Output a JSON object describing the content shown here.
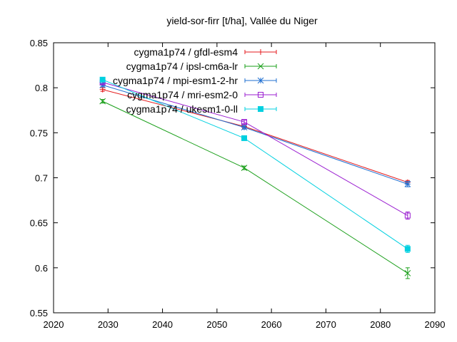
{
  "chart_data": {
    "type": "line",
    "title": "yield-sor-firr [t/ha], Vallée du Niger",
    "xlabel": "",
    "ylabel": "",
    "xlim": [
      2020,
      2090
    ],
    "ylim": [
      0.55,
      0.85
    ],
    "xticks": [
      2020,
      2030,
      2040,
      2050,
      2060,
      2070,
      2080,
      2090
    ],
    "yticks": [
      0.55,
      0.6,
      0.65,
      0.7,
      0.75,
      0.8,
      0.85
    ],
    "ytick_labels": [
      "0.55",
      "0.6",
      "0.65",
      "0.7",
      "0.75",
      "0.8",
      "0.85"
    ],
    "grid": false,
    "legend_position": "top-right",
    "series": [
      {
        "name": "cygma1p74 / gfdl-esm4",
        "color": "#e41a1c",
        "marker": "plus",
        "x": [
          2029,
          2055,
          2085
        ],
        "y": [
          0.798,
          0.757,
          0.695
        ],
        "err": [
          0.002,
          0.002,
          0.002
        ]
      },
      {
        "name": "cygma1p74 / ipsl-cm6a-lr",
        "color": "#1a9f1a",
        "marker": "x",
        "x": [
          2029,
          2055,
          2085
        ],
        "y": [
          0.785,
          0.711,
          0.594
        ],
        "err": [
          0.002,
          0.002,
          0.006
        ]
      },
      {
        "name": "cygma1p74 / mpi-esm1-2-hr",
        "color": "#1f6fd1",
        "marker": "star",
        "x": [
          2029,
          2055,
          2085
        ],
        "y": [
          0.803,
          0.756,
          0.693
        ],
        "err": [
          0.002,
          0.002,
          0.003
        ]
      },
      {
        "name": "cygma1p74 / mri-esm2-0",
        "color": "#9b1fd1",
        "marker": "open-square",
        "x": [
          2029,
          2055,
          2085
        ],
        "y": [
          0.806,
          0.762,
          0.658
        ],
        "err": [
          0.002,
          0.002,
          0.004
        ]
      },
      {
        "name": "cygma1p74 / ukesm1-0-ll",
        "color": "#00d0e0",
        "marker": "filled-square",
        "x": [
          2029,
          2055,
          2085
        ],
        "y": [
          0.809,
          0.744,
          0.621
        ],
        "err": [
          0.002,
          0.002,
          0.004
        ]
      }
    ]
  }
}
